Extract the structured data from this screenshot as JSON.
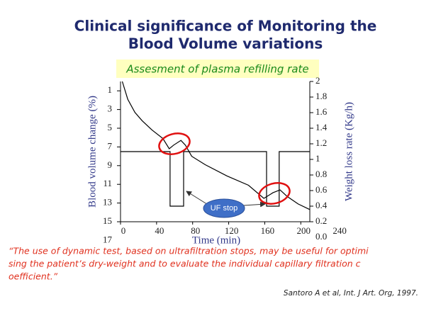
{
  "chart_data": {
    "type": "line",
    "title": [
      "Clinical significance of Monitoring the",
      "Blood Volume variations"
    ],
    "subtitle": "Assesment of plasma refilling rate",
    "x_label": "Time (min)",
    "y_label": "Blood volume change (%)",
    "y2_label": "Weight loss rate (Kg/h)",
    "xlim": [
      0,
      210
    ],
    "xticks": [
      0,
      40,
      80,
      120,
      160,
      200,
      240
    ],
    "ylim": [
      0,
      15
    ],
    "y_inverted": true,
    "yticks": [
      1,
      3,
      5,
      7,
      9,
      11,
      13,
      15,
      17
    ],
    "y2lim": [
      0.2,
      2.0
    ],
    "y2ticks": [
      {
        "value": 0.0,
        "label": "0.0"
      },
      0.2,
      0.4,
      0.6,
      0.8,
      1,
      1.2,
      1.4,
      1.6,
      1.8,
      2
    ],
    "series": [
      {
        "name": "Blood volume change",
        "color": "#000000",
        "axis": "y",
        "x": [
          2,
          8,
          16,
          24,
          35,
          47,
          54,
          59,
          67,
          72,
          79,
          94,
          118,
          142,
          159,
          169,
          177,
          185,
          197,
          210
        ],
        "values": [
          0,
          1.9,
          3.3,
          4.2,
          5.2,
          6.1,
          7.2,
          6.8,
          6.3,
          6.8,
          8.0,
          8.9,
          10.1,
          11.1,
          12.5,
          11.9,
          11.6,
          12.3,
          13.1,
          13.7
        ]
      },
      {
        "name": "Weight loss rate",
        "color": "#000000",
        "axis": "y2",
        "x": [
          0,
          55,
          55,
          70,
          70,
          162,
          162,
          176,
          176,
          210
        ],
        "values": [
          1.1,
          1.1,
          0.4,
          0.4,
          1.1,
          1.1,
          0.4,
          0.4,
          1.1,
          1.1
        ]
      }
    ],
    "annotation": "UF stop",
    "quote": [
      "“The use of dynamic test, based on ultrafiltration stops, may be useful for optimi",
      "sing the patient’s dry-weight and  to evaluate the individual  capillary filtration c",
      "oefficient.”"
    ],
    "citation": "Santoro A et al, Int. J Art. Org, 1997."
  }
}
